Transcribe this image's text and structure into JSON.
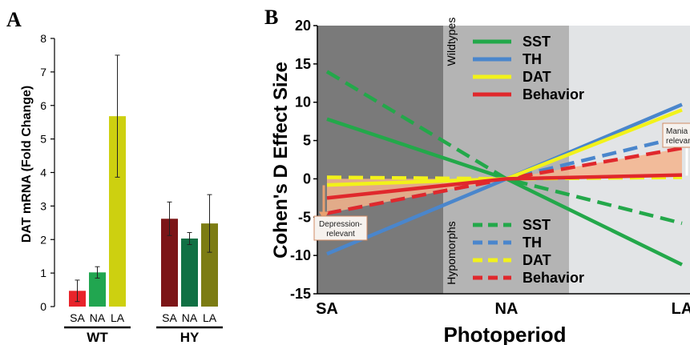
{
  "panel_a": {
    "letter": "A",
    "chart_data": {
      "type": "bar",
      "ylabel": "DAT mRNA (Fold Change)",
      "ylim": [
        0,
        8
      ],
      "yticks": [
        "0",
        "1",
        "2",
        "3",
        "4",
        "5",
        "6",
        "7",
        "8"
      ],
      "groups": [
        {
          "name": "WT",
          "categories": [
            "SA",
            "NA",
            "LA"
          ],
          "values": [
            0.47,
            1.02,
            5.68
          ],
          "errors": [
            0.32,
            0.17,
            1.82
          ],
          "colors": [
            "#e8242b",
            "#21a650",
            "#cdd010"
          ]
        },
        {
          "name": "HY",
          "categories": [
            "SA",
            "NA",
            "LA"
          ],
          "values": [
            2.62,
            2.03,
            2.48
          ],
          "errors": [
            0.5,
            0.18,
            0.86
          ],
          "colors": [
            "#7c1517",
            "#107044",
            "#7c7c13"
          ]
        }
      ]
    }
  },
  "panel_b": {
    "letter": "B",
    "chart_data": {
      "type": "line",
      "ylabel": "Cohen's D Effect Size",
      "xlabel": "Photoperiod",
      "categories": [
        "SA",
        "NA",
        "LA"
      ],
      "ylim": [
        -15,
        20
      ],
      "yticks": [
        "-15",
        "-10",
        "-5",
        "0",
        "5",
        "10",
        "15",
        "20"
      ],
      "background_shades": [
        "#7a7a7a",
        "#b4b4b4",
        "#e2e4e6"
      ],
      "series": [
        {
          "name": "SST",
          "group": "Wildtypes",
          "style": "solid",
          "color": "#23a84a",
          "values": [
            7.8,
            0,
            -11.2
          ]
        },
        {
          "name": "TH",
          "group": "Wildtypes",
          "style": "solid",
          "color": "#4a86cc",
          "values": [
            -9.8,
            0,
            9.7
          ]
        },
        {
          "name": "DAT",
          "group": "Wildtypes",
          "style": "solid",
          "color": "#f2f21a",
          "values": [
            -0.8,
            0,
            9.0
          ]
        },
        {
          "name": "Behavior",
          "group": "Wildtypes",
          "style": "solid",
          "color": "#e0282c",
          "values": [
            -2.5,
            0,
            0.5
          ]
        },
        {
          "name": "SST",
          "group": "Hypomorphs",
          "style": "dashed",
          "color": "#23a84a",
          "values": [
            14.0,
            0,
            -5.8
          ]
        },
        {
          "name": "TH",
          "group": "Hypomorphs",
          "style": "dashed",
          "color": "#4a86cc",
          "values": [
            -4.5,
            0,
            5.5
          ]
        },
        {
          "name": "DAT",
          "group": "Hypomorphs",
          "style": "dashed",
          "color": "#f2f21a",
          "values": [
            0.2,
            0,
            0.2
          ]
        },
        {
          "name": "Behavior",
          "group": "Hypomorphs",
          "style": "dashed",
          "color": "#e0282c",
          "values": [
            -4.5,
            0,
            4.0
          ]
        }
      ],
      "legend_groups": [
        "Wildtypes",
        "Hypomorphs"
      ],
      "annotations": [
        {
          "lines": [
            "Depression-",
            "relevant"
          ],
          "at": "SA"
        },
        {
          "lines": [
            "Mania",
            "relevant"
          ],
          "at": "LA"
        }
      ],
      "shade_color": "#f4b48c"
    }
  }
}
